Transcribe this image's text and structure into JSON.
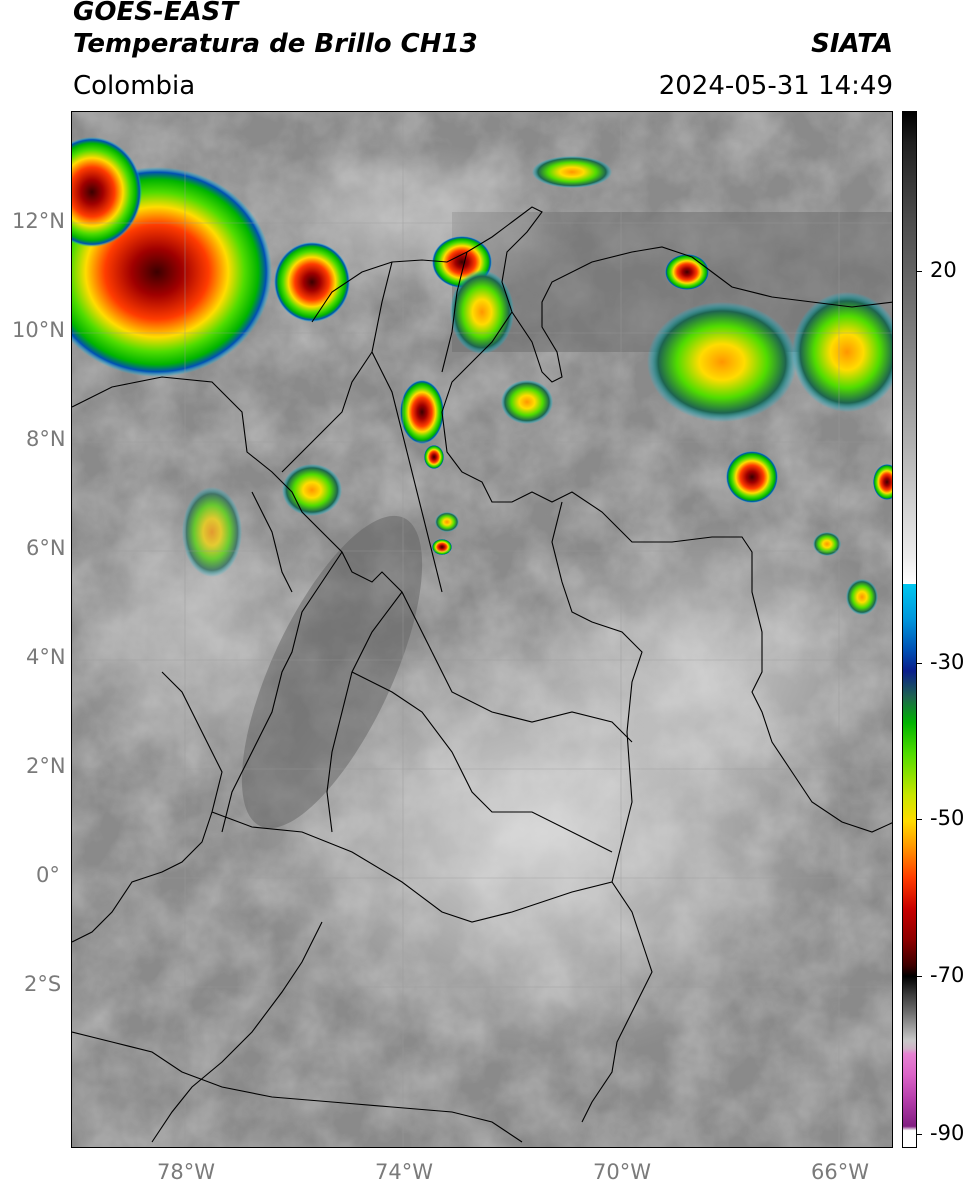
{
  "header": {
    "title_line1": "GOES-EAST",
    "title_line2": "Temperatura de Brillo CH13",
    "agency": "SIATA",
    "region": "Colombia",
    "datetime": "2024-05-31 14:49"
  },
  "map": {
    "lat_ticks": [
      "12°N",
      "10°N",
      "8°N",
      "6°N",
      "4°N",
      "2°N",
      "0°",
      "2°S"
    ],
    "lon_ticks": [
      "78°W",
      "74°W",
      "70°W",
      "66°W"
    ]
  },
  "colorbar": {
    "ticks": [
      "20",
      "-30",
      "-50",
      "-70",
      "-90"
    ],
    "colors": {
      "warm_gray": "#8c8c8c",
      "cold_cyan": "#00c8f0",
      "blue": "#0a1e8c",
      "green": "#00b400",
      "yellow": "#ffdc00",
      "orange": "#ff9600",
      "red": "#c80000",
      "dark_red": "#3c0000",
      "magenta": "#dc64c8",
      "purple": "#821e82"
    }
  }
}
